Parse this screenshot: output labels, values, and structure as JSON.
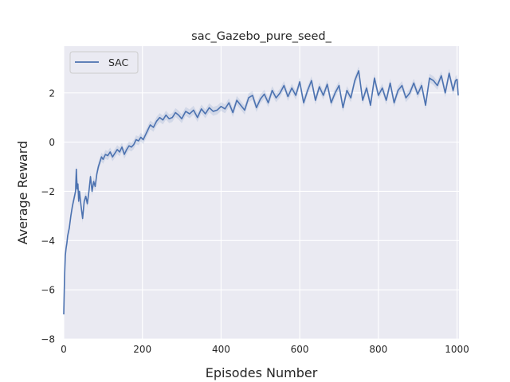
{
  "chart_data": {
    "type": "line",
    "title": "sac_Gazebo_pure_seed_",
    "xlabel": "Episodes Number",
    "ylabel": "Average Reward",
    "xlim": [
      0,
      1005
    ],
    "ylim": [
      -8,
      3.9
    ],
    "xticks": [
      0,
      200,
      400,
      600,
      800,
      1000
    ],
    "yticks": [
      -8,
      -6,
      -4,
      -2,
      0,
      2
    ],
    "grid": true,
    "legend": "top-left",
    "series": [
      {
        "name": "SAC",
        "color": "#4c72b0",
        "band_color": "#4c72b0",
        "x": [
          0,
          2,
          4,
          6,
          8,
          10,
          14,
          18,
          22,
          26,
          30,
          32,
          34,
          36,
          38,
          40,
          44,
          48,
          52,
          56,
          60,
          64,
          68,
          72,
          76,
          80,
          84,
          88,
          92,
          96,
          100,
          106,
          112,
          118,
          124,
          130,
          136,
          142,
          148,
          154,
          160,
          166,
          172,
          178,
          184,
          190,
          196,
          202,
          208,
          214,
          220,
          228,
          236,
          244,
          252,
          260,
          268,
          276,
          284,
          292,
          300,
          310,
          320,
          330,
          340,
          350,
          360,
          370,
          380,
          390,
          400,
          410,
          420,
          430,
          440,
          450,
          460,
          470,
          480,
          490,
          500,
          510,
          520,
          530,
          540,
          550,
          560,
          570,
          580,
          590,
          600,
          610,
          620,
          630,
          640,
          650,
          660,
          670,
          680,
          690,
          700,
          710,
          720,
          730,
          740,
          750,
          760,
          770,
          780,
          790,
          800,
          810,
          820,
          830,
          840,
          850,
          860,
          870,
          880,
          890,
          900,
          910,
          920,
          930,
          940,
          950,
          960,
          970,
          980,
          990,
          996,
          1000,
          1003
        ],
        "y": [
          -7.0,
          -5.5,
          -4.6,
          -4.3,
          -4.1,
          -3.8,
          -3.5,
          -3.0,
          -2.6,
          -2.3,
          -2.0,
          -1.1,
          -1.9,
          -1.7,
          -2.4,
          -2.0,
          -2.6,
          -3.1,
          -2.4,
          -2.2,
          -2.5,
          -2.0,
          -1.4,
          -2.0,
          -1.6,
          -1.8,
          -1.3,
          -1.0,
          -0.8,
          -0.6,
          -0.7,
          -0.5,
          -0.55,
          -0.4,
          -0.6,
          -0.45,
          -0.3,
          -0.4,
          -0.2,
          -0.5,
          -0.3,
          -0.15,
          -0.2,
          -0.1,
          0.1,
          0.05,
          0.2,
          0.1,
          0.3,
          0.5,
          0.7,
          0.6,
          0.85,
          1.0,
          0.9,
          1.1,
          0.95,
          1.0,
          1.2,
          1.1,
          0.95,
          1.25,
          1.15,
          1.3,
          1.0,
          1.35,
          1.15,
          1.4,
          1.25,
          1.3,
          1.45,
          1.35,
          1.6,
          1.2,
          1.7,
          1.5,
          1.3,
          1.8,
          1.9,
          1.4,
          1.75,
          1.95,
          1.6,
          2.1,
          1.8,
          2.0,
          2.3,
          1.85,
          2.2,
          1.9,
          2.45,
          1.6,
          2.1,
          2.5,
          1.7,
          2.25,
          1.9,
          2.35,
          1.6,
          2.0,
          2.3,
          1.4,
          2.1,
          1.8,
          2.5,
          2.9,
          1.7,
          2.2,
          1.5,
          2.6,
          1.9,
          2.2,
          1.7,
          2.4,
          1.6,
          2.1,
          2.3,
          1.8,
          2.0,
          2.4,
          1.95,
          2.3,
          1.5,
          2.6,
          2.5,
          2.3,
          2.7,
          2.0,
          2.8,
          2.1,
          2.5,
          2.55,
          1.9
        ]
      }
    ]
  }
}
